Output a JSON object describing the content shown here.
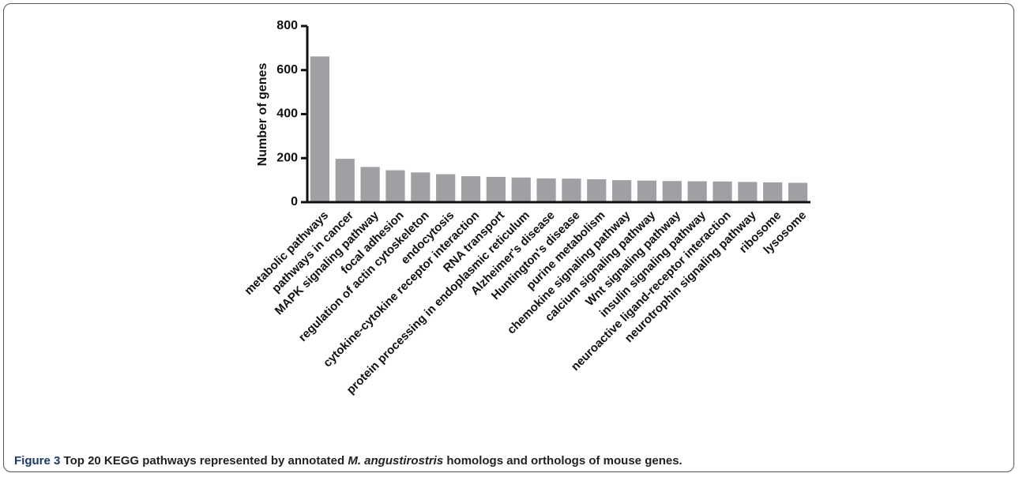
{
  "chart_data": {
    "type": "bar",
    "y_label": "Number of genes",
    "categories": [
      "metabolic pathways",
      "pathways in cancer",
      "MAPK signaling pathway",
      "focal adhesion",
      "regulation of actin cytoskeleton",
      "endocytosis",
      "cytokine-cytokine receptor interaction",
      "RNA transport",
      "protein processing in endoplasmic reticulum",
      "Alzheimer's disease",
      "Huntington's disease",
      "purine metabolism",
      "chemokine signaling pathway",
      "calcium signaling pathway",
      "Wnt signaling pathway",
      "insulin signaling pathway",
      "neuroactive ligand-receptor interaction",
      "neurotrophin signaling pathway",
      "ribosome",
      "lysosome"
    ],
    "values": [
      662,
      197,
      160,
      145,
      135,
      127,
      118,
      115,
      112,
      108,
      107,
      104,
      100,
      98,
      96,
      95,
      94,
      92,
      90,
      88
    ],
    "color": "#a0a0a4",
    "ylim": [
      0,
      800
    ],
    "yticks": [
      0,
      200,
      400,
      600,
      800
    ],
    "grid": false
  },
  "caption": {
    "label": "Figure 3",
    "text_before": "Top 20 KEGG pathways represented by annotated ",
    "species": "M. angustirostris",
    "text_after": " homologs and orthologs of mouse genes."
  }
}
